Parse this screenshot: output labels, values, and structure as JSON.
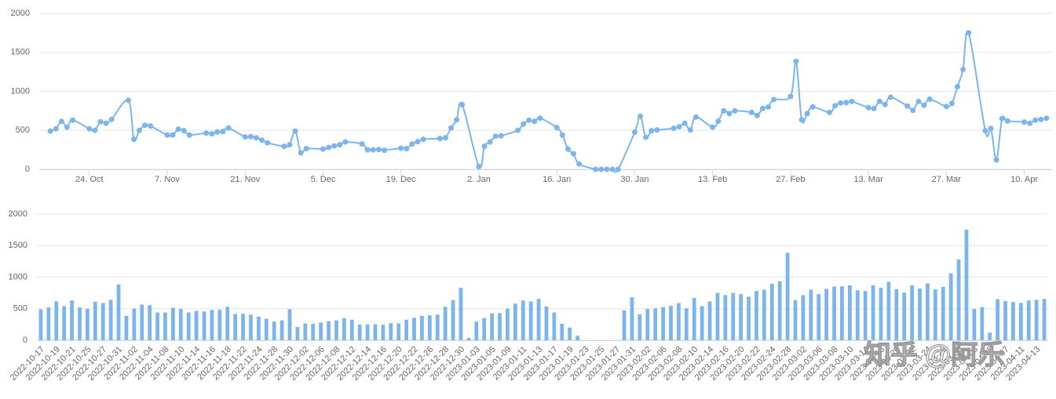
{
  "chart_data": [
    {
      "type": "line",
      "color": "#7cb5ec",
      "grid": true,
      "xlim": [
        "2022-10-15",
        "2023-04-15"
      ],
      "ylim": [
        0,
        2000
      ],
      "yticks": [
        0,
        500,
        1000,
        1500,
        2000
      ],
      "xticks": [
        {
          "value": "2022-10-24",
          "label": "24. Oct"
        },
        {
          "value": "2022-11-07",
          "label": "7. Nov"
        },
        {
          "value": "2022-11-21",
          "label": "21. Nov"
        },
        {
          "value": "2022-12-05",
          "label": "5. Dec"
        },
        {
          "value": "2022-12-19",
          "label": "19. Dec"
        },
        {
          "value": "2023-01-02",
          "label": "2. Jan"
        },
        {
          "value": "2023-01-16",
          "label": "16. Jan"
        },
        {
          "value": "2023-01-30",
          "label": "30. Jan"
        },
        {
          "value": "2023-02-13",
          "label": "13. Feb"
        },
        {
          "value": "2023-02-27",
          "label": "27. Feb"
        },
        {
          "value": "2023-03-13",
          "label": "13. Mar"
        },
        {
          "value": "2023-03-27",
          "label": "27. Mar"
        },
        {
          "value": "2023-04-10",
          "label": "10. Apr"
        }
      ],
      "x": [
        "2022-10-17",
        "2022-10-18",
        "2022-10-19",
        "2022-10-20",
        "2022-10-21",
        "2022-10-24",
        "2022-10-25",
        "2022-10-26",
        "2022-10-27",
        "2022-10-28",
        "2022-10-31",
        "2022-11-01",
        "2022-11-02",
        "2022-11-03",
        "2022-11-04",
        "2022-11-07",
        "2022-11-08",
        "2022-11-09",
        "2022-11-10",
        "2022-11-11",
        "2022-11-14",
        "2022-11-15",
        "2022-11-16",
        "2022-11-17",
        "2022-11-18",
        "2022-11-21",
        "2022-11-22",
        "2022-11-23",
        "2022-11-24",
        "2022-11-25",
        "2022-11-28",
        "2022-11-29",
        "2022-11-30",
        "2022-12-01",
        "2022-12-02",
        "2022-12-05",
        "2022-12-06",
        "2022-12-07",
        "2022-12-08",
        "2022-12-09",
        "2022-12-12",
        "2022-12-13",
        "2022-12-14",
        "2022-12-15",
        "2022-12-16",
        "2022-12-19",
        "2022-12-20",
        "2022-12-21",
        "2022-12-22",
        "2022-12-23",
        "2022-12-26",
        "2022-12-27",
        "2022-12-28",
        "2022-12-29",
        "2022-12-30",
        "2023-01-02",
        "2023-01-03",
        "2023-01-04",
        "2023-01-05",
        "2023-01-06",
        "2023-01-09",
        "2023-01-10",
        "2023-01-11",
        "2023-01-12",
        "2023-01-13",
        "2023-01-16",
        "2023-01-17",
        "2023-01-18",
        "2023-01-19",
        "2023-01-20",
        "2023-01-23",
        "2023-01-24",
        "2023-01-25",
        "2023-01-26",
        "2023-01-27",
        "2023-01-30",
        "2023-01-31",
        "2023-02-01",
        "2023-02-02",
        "2023-02-03",
        "2023-02-06",
        "2023-02-07",
        "2023-02-08",
        "2023-02-09",
        "2023-02-10",
        "2023-02-13",
        "2023-02-14",
        "2023-02-15",
        "2023-02-16",
        "2023-02-17",
        "2023-02-20",
        "2023-02-21",
        "2023-02-22",
        "2023-02-23",
        "2023-02-24",
        "2023-02-27",
        "2023-02-28",
        "2023-03-01",
        "2023-03-02",
        "2023-03-03",
        "2023-03-06",
        "2023-03-07",
        "2023-03-08",
        "2023-03-09",
        "2023-03-10",
        "2023-03-13",
        "2023-03-14",
        "2023-03-15",
        "2023-03-16",
        "2023-03-17",
        "2023-03-20",
        "2023-03-21",
        "2023-03-22",
        "2023-03-23",
        "2023-03-24",
        "2023-03-27",
        "2023-03-28",
        "2023-03-29",
        "2023-03-30",
        "2023-03-31",
        "2023-04-03",
        "2023-04-04",
        "2023-04-05",
        "2023-04-06",
        "2023-04-07",
        "2023-04-10",
        "2023-04-11",
        "2023-04-12",
        "2023-04-13",
        "2023-04-14"
      ],
      "values": [
        490,
        520,
        615,
        540,
        630,
        520,
        500,
        610,
        590,
        640,
        885,
        385,
        500,
        565,
        555,
        440,
        440,
        515,
        495,
        440,
        465,
        455,
        480,
        485,
        530,
        415,
        420,
        405,
        375,
        340,
        295,
        315,
        490,
        210,
        265,
        260,
        280,
        300,
        315,
        350,
        325,
        250,
        250,
        255,
        245,
        270,
        265,
        325,
        355,
        385,
        395,
        405,
        530,
        635,
        830,
        35,
        295,
        350,
        425,
        430,
        500,
        580,
        630,
        615,
        655,
        535,
        440,
        260,
        200,
        70,
        0,
        0,
        0,
        0,
        0,
        475,
        680,
        410,
        495,
        505,
        525,
        545,
        590,
        505,
        670,
        540,
        615,
        750,
        715,
        750,
        730,
        690,
        780,
        800,
        895,
        935,
        1385,
        635,
        715,
        800,
        730,
        815,
        850,
        855,
        870,
        790,
        780,
        870,
        830,
        925,
        810,
        755,
        870,
        820,
        900,
        805,
        845,
        1060,
        1280,
        1750,
        495,
        525,
        120,
        650,
        620,
        605,
        590,
        630,
        640,
        655
      ]
    },
    {
      "type": "bar",
      "color": "#7cb5ec",
      "grid": true,
      "annotation": "知乎 @阿乐",
      "ylim": [
        0,
        2000
      ],
      "yticks": [
        0,
        500,
        1000,
        1500,
        2000
      ],
      "categories": [
        "2022-10-17",
        null,
        "2022-10-19",
        null,
        "2022-10-21",
        null,
        "2022-10-25",
        null,
        "2022-10-27",
        null,
        "2022-10-31",
        null,
        "2022-11-02",
        null,
        "2022-11-04",
        null,
        "2022-11-08",
        null,
        "2022-11-10",
        null,
        "2022-11-14",
        null,
        "2022-11-16",
        null,
        "2022-11-18",
        null,
        "2022-11-22",
        null,
        "2022-11-24",
        null,
        "2022-11-28",
        null,
        "2022-11-30",
        null,
        "2022-12-02",
        null,
        "2022-12-06",
        null,
        "2022-12-08",
        null,
        "2022-12-12",
        null,
        "2022-12-14",
        null,
        "2022-12-16",
        null,
        "2022-12-20",
        null,
        "2022-12-22",
        null,
        "2022-12-26",
        null,
        "2022-12-28",
        null,
        "2022-12-30",
        null,
        "2023-01-03",
        null,
        "2023-01-05",
        null,
        "2023-01-09",
        null,
        "2023-01-11",
        null,
        "2023-01-13",
        null,
        "2023-01-17",
        null,
        "2023-01-19",
        null,
        "2023-01-23",
        null,
        "2023-01-25",
        null,
        "2023-01-27",
        null,
        "2023-01-31",
        null,
        "2023-02-02",
        null,
        "2023-02-06",
        null,
        "2023-02-08",
        null,
        "2023-02-10",
        null,
        "2023-02-14",
        null,
        "2023-02-16",
        null,
        "2023-02-20",
        null,
        "2023-02-22",
        null,
        "2023-02-24",
        null,
        "2023-02-28",
        null,
        "2023-03-02",
        null,
        "2023-03-06",
        null,
        "2023-03-08",
        null,
        "2023-03-10",
        null,
        "2023-03-14",
        null,
        "2023-03-16",
        null,
        "2023-03-20",
        null,
        "2023-03-22",
        null,
        "2023-03-24",
        null,
        "2023-03-28",
        null,
        "2023-03-30",
        null,
        "2023-04-03",
        null,
        "2023-04-05",
        null,
        "2023-04-07",
        null,
        "2023-04-11",
        null,
        "2023-04-13",
        null
      ],
      "values": [
        490,
        520,
        615,
        540,
        630,
        520,
        500,
        610,
        590,
        640,
        885,
        385,
        500,
        565,
        555,
        440,
        440,
        515,
        495,
        440,
        465,
        455,
        480,
        485,
        530,
        415,
        420,
        405,
        375,
        340,
        295,
        315,
        490,
        210,
        265,
        260,
        280,
        300,
        315,
        350,
        325,
        250,
        250,
        255,
        245,
        270,
        265,
        325,
        355,
        385,
        395,
        405,
        530,
        635,
        830,
        35,
        295,
        350,
        425,
        430,
        500,
        580,
        630,
        615,
        655,
        535,
        440,
        260,
        200,
        70,
        0,
        0,
        0,
        0,
        0,
        475,
        680,
        410,
        495,
        505,
        525,
        545,
        590,
        505,
        670,
        540,
        615,
        750,
        715,
        750,
        730,
        690,
        780,
        800,
        895,
        935,
        1385,
        635,
        715,
        800,
        730,
        815,
        850,
        855,
        870,
        790,
        780,
        870,
        830,
        925,
        810,
        755,
        870,
        820,
        900,
        805,
        845,
        1060,
        1280,
        1750,
        495,
        525,
        120,
        650,
        620,
        605,
        590,
        630,
        640,
        655
      ]
    }
  ]
}
